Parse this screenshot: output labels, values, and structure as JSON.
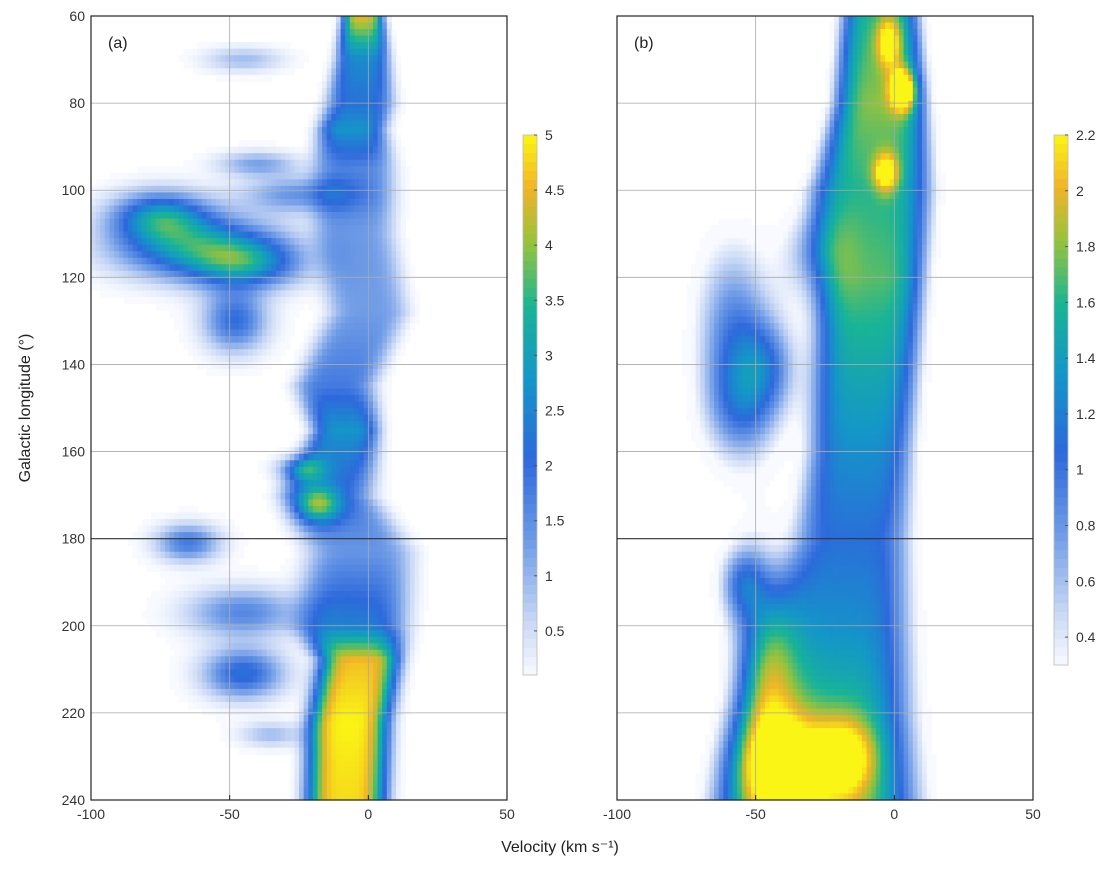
{
  "chart_data": [
    {
      "type": "heatmap",
      "panel_label": "(a)",
      "xlabel": "Velocity (km s⁻¹)",
      "ylabel": "Galactic longitude (°)",
      "xlim": [
        -100,
        50
      ],
      "ylim": [
        60,
        240
      ],
      "y_inverted": true,
      "xticks": [
        -100,
        -50,
        0,
        50
      ],
      "yticks": [
        60,
        80,
        100,
        120,
        140,
        160,
        180,
        200,
        220,
        240
      ],
      "grid": true,
      "colorbar": {
        "min": 0.1,
        "max": 5,
        "ticks": [
          0.5,
          1,
          1.5,
          2,
          2.5,
          3,
          3.5,
          4,
          4.5,
          5
        ]
      },
      "ridge": [
        {
          "l": 60,
          "v": -2,
          "hw": 6,
          "amp": 4.5
        },
        {
          "l": 70,
          "v": -2,
          "hw": 8,
          "amp": 2.6
        },
        {
          "l": 80,
          "v": -3,
          "hw": 10,
          "amp": 2.2
        },
        {
          "l": 86,
          "v": -6,
          "hw": 10,
          "amp": 2.8
        },
        {
          "l": 95,
          "v": -5,
          "hw": 12,
          "amp": 1.6
        },
        {
          "l": 110,
          "v": -5,
          "hw": 12,
          "amp": 1.3
        },
        {
          "l": 128,
          "v": 0,
          "hw": 12,
          "amp": 1.3
        },
        {
          "l": 145,
          "v": -12,
          "hw": 12,
          "amp": 1.8
        },
        {
          "l": 155,
          "v": -8,
          "hw": 10,
          "amp": 2.8
        },
        {
          "l": 170,
          "v": -15,
          "hw": 14,
          "amp": 1.8
        },
        {
          "l": 183,
          "v": -3,
          "hw": 16,
          "amp": 1.4
        },
        {
          "l": 200,
          "v": -6,
          "hw": 16,
          "amp": 2.4
        },
        {
          "l": 208,
          "v": -3,
          "hw": 12,
          "amp": 4.6
        },
        {
          "l": 222,
          "v": -7,
          "hw": 12,
          "amp": 5
        },
        {
          "l": 240,
          "v": -8,
          "hw": 12,
          "amp": 4.8
        }
      ],
      "features": [
        {
          "l": 106,
          "v": -75,
          "dl": 4,
          "dv": 12,
          "amp": 2.6
        },
        {
          "l": 113,
          "v": -62,
          "dl": 5,
          "dv": 20,
          "amp": 2.8
        },
        {
          "l": 117,
          "v": -44,
          "dl": 4,
          "dv": 14,
          "amp": 2.2
        },
        {
          "l": 130,
          "v": -48,
          "dl": 5,
          "dv": 8,
          "amp": 2.0
        },
        {
          "l": 101,
          "v": -25,
          "dl": 3,
          "dv": 14,
          "amp": 1.4
        },
        {
          "l": 94,
          "v": -40,
          "dl": 2,
          "dv": 10,
          "amp": 1.2
        },
        {
          "l": 181,
          "v": -65,
          "dl": 3,
          "dv": 8,
          "amp": 1.8
        },
        {
          "l": 197,
          "v": -45,
          "dl": 4,
          "dv": 14,
          "amp": 1.6
        },
        {
          "l": 211,
          "v": -45,
          "dl": 4,
          "dv": 10,
          "amp": 2.2
        },
        {
          "l": 164,
          "v": -24,
          "dl": 2,
          "dv": 6,
          "amp": 1.8
        },
        {
          "l": 172,
          "v": -18,
          "dl": 3,
          "dv": 6,
          "amp": 2.4
        },
        {
          "l": 70,
          "v": -45,
          "dl": 2,
          "dv": 10,
          "amp": 0.9
        },
        {
          "l": 225,
          "v": -35,
          "dl": 2,
          "dv": 8,
          "amp": 0.9
        }
      ]
    },
    {
      "type": "heatmap",
      "panel_label": "(b)",
      "xlabel": "Velocity (km s⁻¹)",
      "xlim": [
        -100,
        50
      ],
      "ylim": [
        60,
        240
      ],
      "y_inverted": true,
      "xticks": [
        -100,
        -50,
        0,
        50
      ],
      "grid": true,
      "colorbar": {
        "min": 0.3,
        "max": 2.2,
        "ticks": [
          0.4,
          0.6,
          0.8,
          1,
          1.2,
          1.4,
          1.6,
          1.8,
          2,
          2.2
        ]
      },
      "ridge": [
        {
          "l": 60,
          "v": -5,
          "hw": 12,
          "amp": 1.6
        },
        {
          "l": 80,
          "v": -5,
          "hw": 14,
          "amp": 1.8
        },
        {
          "l": 100,
          "v": -8,
          "hw": 18,
          "amp": 1.6
        },
        {
          "l": 120,
          "v": -8,
          "hw": 16,
          "amp": 1.7
        },
        {
          "l": 140,
          "v": -10,
          "hw": 16,
          "amp": 1.5
        },
        {
          "l": 160,
          "v": -12,
          "hw": 16,
          "amp": 1.3
        },
        {
          "l": 180,
          "v": -15,
          "hw": 18,
          "amp": 1.1
        },
        {
          "l": 200,
          "v": -20,
          "hw": 22,
          "amp": 1.3
        },
        {
          "l": 220,
          "v": -25,
          "hw": 26,
          "amp": 1.6
        },
        {
          "l": 240,
          "v": -28,
          "hw": 30,
          "amp": 1.8
        }
      ],
      "features": [
        {
          "l": 205,
          "v": -48,
          "dl": 16,
          "dv": 8,
          "amp": 1.0
        },
        {
          "l": 232,
          "v": -42,
          "dl": 8,
          "dv": 12,
          "amp": 1.0
        },
        {
          "l": 230,
          "v": -18,
          "dl": 6,
          "dv": 8,
          "amp": 0.8
        },
        {
          "l": 77,
          "v": 3,
          "dl": 3,
          "dv": 3,
          "amp": 1.4
        },
        {
          "l": 66,
          "v": -2,
          "dl": 4,
          "dv": 3,
          "amp": 0.8
        },
        {
          "l": 96,
          "v": -3,
          "dl": 3,
          "dv": 3,
          "amp": 0.9
        },
        {
          "l": 130,
          "v": -58,
          "dl": 14,
          "dv": 10,
          "amp": 0.8
        },
        {
          "l": 150,
          "v": -55,
          "dl": 10,
          "dv": 10,
          "amp": 0.8
        },
        {
          "l": 140,
          "v": -45,
          "dl": 8,
          "dv": 8,
          "amp": 0.6
        },
        {
          "l": 190,
          "v": -55,
          "dl": 6,
          "dv": 6,
          "amp": 0.7
        },
        {
          "l": 115,
          "v": -30,
          "dl": 8,
          "dv": 8,
          "amp": 0.6
        }
      ]
    }
  ]
}
